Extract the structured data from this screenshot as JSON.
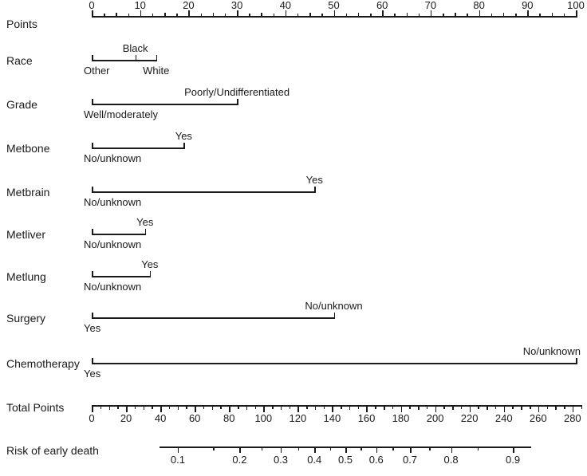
{
  "chart_data": {
    "type": "nomogram",
    "title": "",
    "background": "#ffffff",
    "ink": "#1a1a1a",
    "points_axis": {
      "label": "Points",
      "min": 0,
      "max": 100,
      "major_step": 10,
      "medium_step": 5,
      "minor_step": 2.5,
      "labels": [
        "0",
        "10",
        "20",
        "30",
        "40",
        "50",
        "60",
        "70",
        "80",
        "90",
        "100"
      ]
    },
    "variables": [
      {
        "label": "Race",
        "line_start": 0,
        "line_end": 13.3,
        "categories": [
          {
            "label": "Other",
            "points": 0,
            "side": "below",
            "align": "start"
          },
          {
            "label": "Black",
            "points": 9,
            "side": "above",
            "align": "center"
          },
          {
            "label": "White",
            "points": 13.3,
            "side": "below",
            "align": "center"
          }
        ]
      },
      {
        "label": "Grade",
        "line_start": 0,
        "line_end": 30,
        "categories": [
          {
            "label": "Well/moderately",
            "points": 0,
            "side": "below",
            "align": "start"
          },
          {
            "label": "Poorly/Undifferentiated",
            "points": 30,
            "side": "above",
            "align": "center"
          }
        ]
      },
      {
        "label": "Metbone",
        "line_start": 0,
        "line_end": 19,
        "categories": [
          {
            "label": "No/unknown",
            "points": 0,
            "side": "below",
            "align": "start"
          },
          {
            "label": "Yes",
            "points": 19,
            "side": "above",
            "align": "center"
          }
        ]
      },
      {
        "label": "Metbrain",
        "line_start": 0,
        "line_end": 46,
        "categories": [
          {
            "label": "No/unknown",
            "points": 0,
            "side": "below",
            "align": "start"
          },
          {
            "label": "Yes",
            "points": 46,
            "side": "above",
            "align": "center"
          }
        ]
      },
      {
        "label": "Metliver",
        "line_start": 0,
        "line_end": 11,
        "categories": [
          {
            "label": "No/unknown",
            "points": 0,
            "side": "below",
            "align": "start"
          },
          {
            "label": "Yes",
            "points": 11,
            "side": "above",
            "align": "center"
          }
        ]
      },
      {
        "label": "Metlung",
        "line_start": 0,
        "line_end": 12,
        "categories": [
          {
            "label": "No/unknown",
            "points": 0,
            "side": "below",
            "align": "start"
          },
          {
            "label": "Yes",
            "points": 12,
            "side": "above",
            "align": "center"
          }
        ]
      },
      {
        "label": "Surgery",
        "line_start": 0,
        "line_end": 50,
        "categories": [
          {
            "label": "Yes",
            "points": 0,
            "side": "below",
            "align": "start"
          },
          {
            "label": "No/unknown",
            "points": 50,
            "side": "above",
            "align": "center"
          }
        ]
      },
      {
        "label": "Chemotherapy",
        "line_start": 0,
        "line_end": 100,
        "categories": [
          {
            "label": "Yes",
            "points": 0,
            "side": "below",
            "align": "start"
          },
          {
            "label": "No/unknown",
            "points": 100,
            "side": "above",
            "align": "end"
          }
        ]
      }
    ],
    "total_points_axis": {
      "label": "Total Points",
      "min": 0,
      "max": 285,
      "major_step": 20,
      "medium_step": 10,
      "minor_step": 5,
      "labels": [
        "0",
        "20",
        "40",
        "60",
        "80",
        "100",
        "120",
        "140",
        "160",
        "180",
        "200",
        "220",
        "240",
        "260",
        "280"
      ]
    },
    "risk_axis": {
      "label": "Risk of early death",
      "scale": "logit",
      "line_min": 0.08,
      "line_max": 0.92,
      "major_ticks": [
        0.1,
        0.2,
        0.3,
        0.4,
        0.5,
        0.6,
        0.7,
        0.8,
        0.9
      ],
      "minor_ticks": [
        0.15,
        0.25,
        0.35,
        0.45,
        0.55,
        0.65,
        0.75,
        0.85
      ],
      "labels": [
        "0.1",
        "0.2",
        "0.3",
        "0.4",
        "0.5",
        "0.6",
        "0.7",
        "0.8",
        "0.9"
      ]
    }
  }
}
